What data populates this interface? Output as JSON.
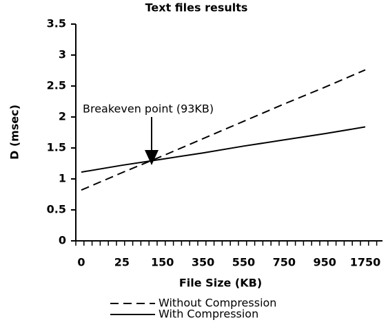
{
  "chart_data": {
    "type": "line",
    "title": "Text files results",
    "x_label": "File Size (KB)",
    "y_label": "D (msec)",
    "annotation": "Breakeven point (93KB)",
    "categories": [
      "0",
      "25",
      "150",
      "350",
      "550",
      "750",
      "950",
      "1750"
    ],
    "series": [
      {
        "name": "Without Compression",
        "color": "#000000",
        "dash": true,
        "values": [
          0.82,
          1.1,
          1.37,
          1.65,
          1.93,
          2.21,
          2.48,
          2.76
        ]
      },
      {
        "name": "With Compression",
        "color": "#000000",
        "dash": false,
        "values": [
          1.11,
          1.22,
          1.32,
          1.42,
          1.53,
          1.63,
          1.73,
          1.84
        ]
      }
    ],
    "ylim": [
      0,
      3.5
    ],
    "yticks": [
      0,
      0.5,
      1,
      1.5,
      2,
      2.5,
      3,
      3.5
    ],
    "grid": false
  }
}
